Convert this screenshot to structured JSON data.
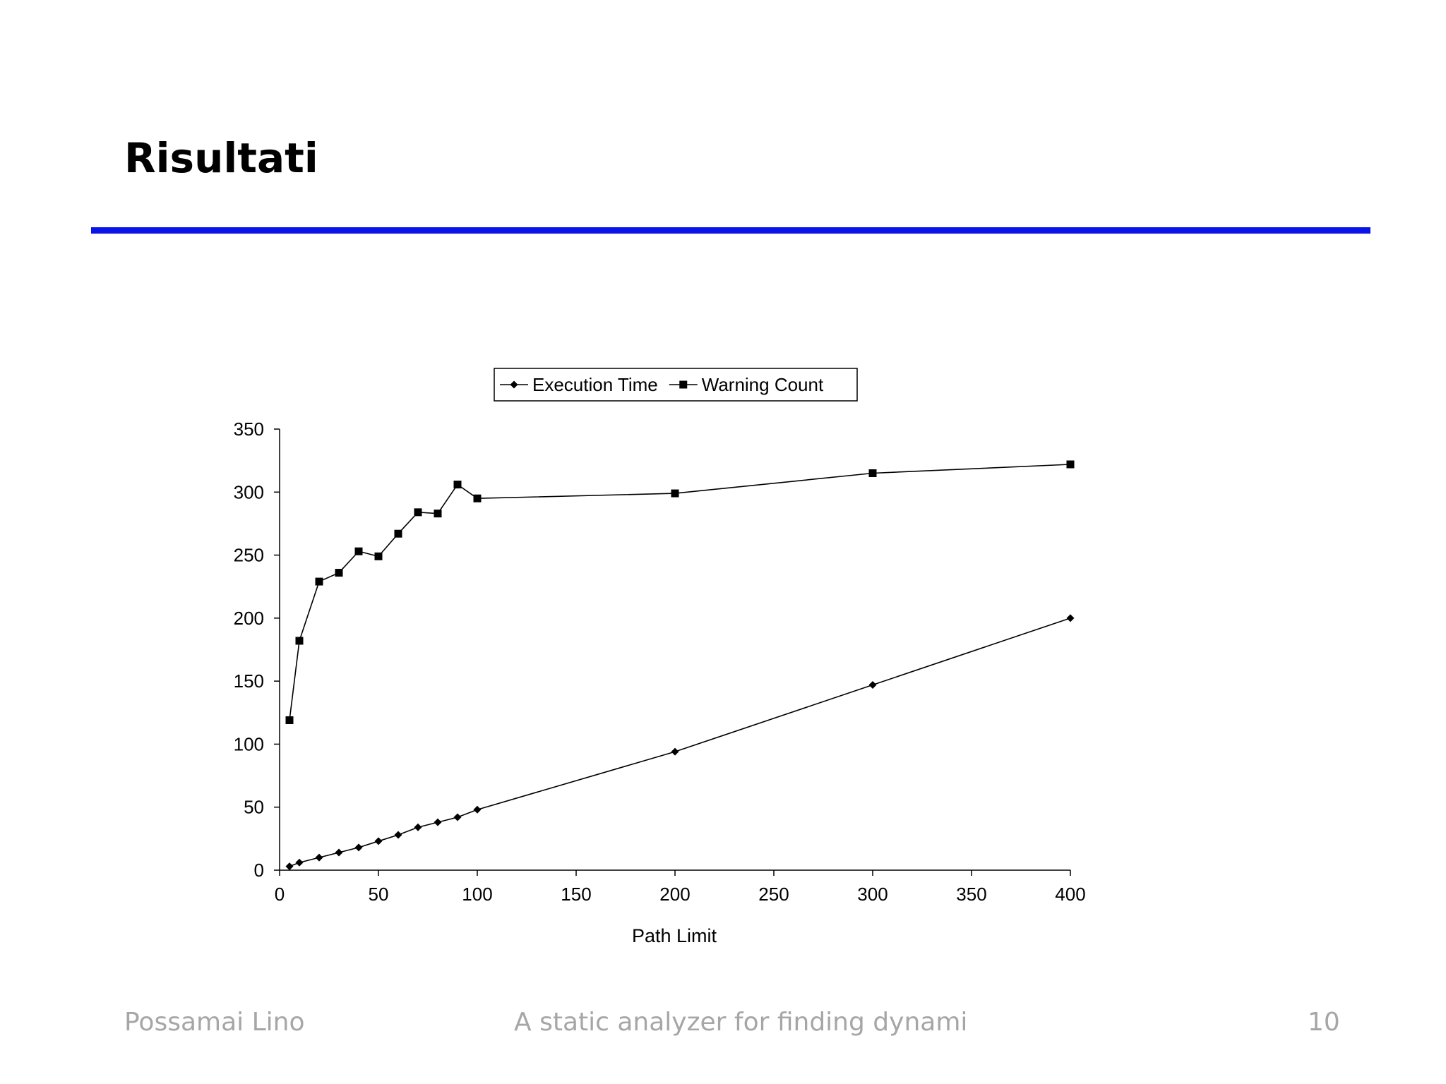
{
  "slide": {
    "title": "Risultati",
    "accent_color": "#0a14e6"
  },
  "footer": {
    "author": "Possamai Lino",
    "subject": "A static analyzer for finding dynami",
    "page": "10"
  },
  "chart_data": {
    "type": "line",
    "title": "",
    "xlabel": "Path Limit",
    "ylabel": "",
    "xlim": [
      0,
      400
    ],
    "ylim": [
      0,
      350
    ],
    "xticks": [
      0,
      50,
      100,
      150,
      200,
      250,
      300,
      350,
      400
    ],
    "yticks": [
      0,
      50,
      100,
      150,
      200,
      250,
      300,
      350
    ],
    "grid": false,
    "legend": "top-center",
    "series": [
      {
        "name": "Execution Time",
        "marker": "diamond",
        "color": "#000000",
        "points": [
          [
            5,
            3
          ],
          [
            10,
            6
          ],
          [
            20,
            10
          ],
          [
            30,
            14
          ],
          [
            40,
            18
          ],
          [
            50,
            23
          ],
          [
            60,
            28
          ],
          [
            70,
            34
          ],
          [
            80,
            38
          ],
          [
            90,
            42
          ],
          [
            100,
            48
          ],
          [
            200,
            94
          ],
          [
            300,
            147
          ],
          [
            400,
            200
          ]
        ]
      },
      {
        "name": "Warning Count",
        "marker": "square",
        "color": "#000000",
        "points": [
          [
            5,
            119
          ],
          [
            10,
            182
          ],
          [
            20,
            229
          ],
          [
            30,
            236
          ],
          [
            40,
            253
          ],
          [
            50,
            249
          ],
          [
            60,
            267
          ],
          [
            70,
            284
          ],
          [
            80,
            283
          ],
          [
            90,
            306
          ],
          [
            100,
            295
          ],
          [
            200,
            299
          ],
          [
            300,
            315
          ],
          [
            400,
            322
          ]
        ]
      }
    ]
  }
}
